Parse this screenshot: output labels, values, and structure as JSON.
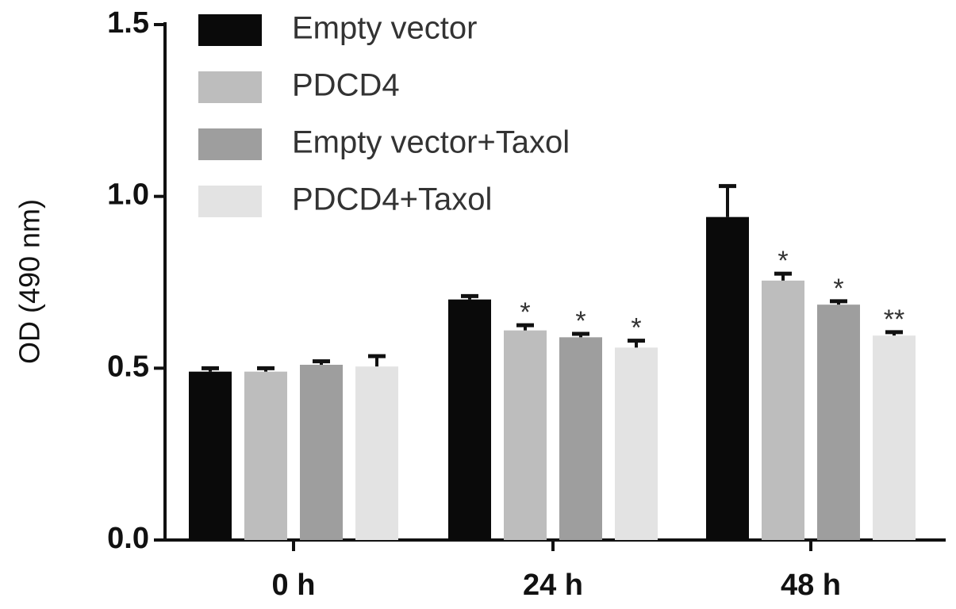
{
  "chart_data": {
    "type": "bar",
    "ylabel": "OD (490 nm)",
    "categories": [
      "0 h",
      "24 h",
      "48 h"
    ],
    "series": [
      {
        "name": "Empty vector",
        "color": "#0a0a0a",
        "values": [
          0.49,
          0.7,
          0.94
        ],
        "errors": [
          0.01,
          0.01,
          0.09
        ],
        "labels": [
          null,
          null,
          null
        ]
      },
      {
        "name": "PDCD4",
        "color": "#bdbdbd",
        "values": [
          0.49,
          0.61,
          0.755
        ],
        "errors": [
          0.01,
          0.015,
          0.02
        ],
        "labels": [
          null,
          "*",
          "*"
        ]
      },
      {
        "name": "Empty vector+Taxol",
        "color": "#9e9e9e",
        "values": [
          0.51,
          0.59,
          0.685
        ],
        "errors": [
          0.01,
          0.01,
          0.01
        ],
        "labels": [
          null,
          "*",
          "*"
        ]
      },
      {
        "name": "PDCD4+Taxol",
        "color": "#e3e3e3",
        "values": [
          0.505,
          0.56,
          0.595
        ],
        "errors": [
          0.03,
          0.02,
          0.01
        ],
        "labels": [
          null,
          "*",
          "**"
        ]
      }
    ],
    "ylim": [
      0,
      1.5
    ],
    "yticks": [
      {
        "value": 0,
        "label": "0.0"
      },
      0.5,
      {
        "value": 1,
        "label": "1.0"
      },
      1.5
    ]
  }
}
